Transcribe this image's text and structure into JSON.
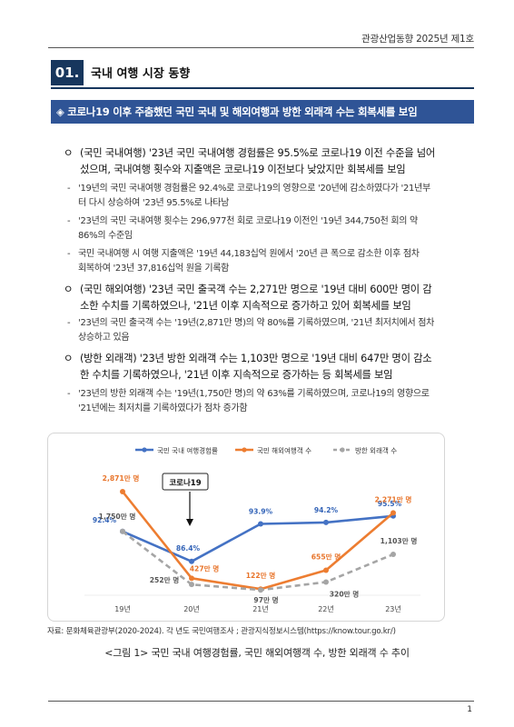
{
  "header": {
    "publication": "관광산업동향 2025년 제1호"
  },
  "section": {
    "number": "01.",
    "title": "국내 여행 시장 동향"
  },
  "banner": {
    "text": "◈ 코로나19 이후 주춤했던 국민 국내 및 해외여행과 방한 외래객 수는 회복세를 보임"
  },
  "bullets": [
    {
      "marker": "ㅇ",
      "lines": [
        "(국민 국내여행) '23년 국민 국내여행 경험률은 95.5%로 코로나19 이전 수준을 넘어",
        "섰으며, 국내여행 횟수와 지출액은 코로나19 이전보다 낮았지만 회복세를 보임"
      ],
      "subs": [
        {
          "marker": "-",
          "lines": [
            "'19년의 국민 국내여행 경험률은 92.4%로 코로나19의 영향으로 '20년에 감소하였다가 '21년부",
            "터 다시 상승하여 '23년 95.5%로 나타남"
          ]
        },
        {
          "marker": "-",
          "lines": [
            "'23년의 국민 국내여행 횟수는 296,977천 회로 코로나19 이전인 '19년 344,750천 회의 약",
            "86%의 수준임"
          ]
        },
        {
          "marker": "-",
          "lines": [
            "국민 국내여행 시 여행 지출액은 '19년 44,183십억 원에서 '20년 큰 폭으로 감소한 이후 점차",
            "회복하여 '23년 37,816십억 원을 기록함"
          ]
        }
      ]
    },
    {
      "marker": "ㅇ",
      "lines": [
        "(국민 해외여행) '23년 국민 출국객 수는 2,271만 명으로 '19년 대비 600만 명이 감",
        "소한 수치를 기록하였으나, '21년 이후 지속적으로 증가하고 있어 회복세를 보임"
      ],
      "subs": [
        {
          "marker": "-",
          "lines": [
            "'23년의 국민 출국객 수는 '19년(2,871만 명)의 약 80%를 기록하였으며, '21년 최저치에서 점차",
            "상승하고 있음"
          ]
        }
      ]
    },
    {
      "marker": "ㅇ",
      "lines": [
        "(방한 외래객) '23년 방한 외래객 수는 1,103만 명으로 '19년 대비 647만 명이 감소",
        "한 수치를 기록하였으나, '21년 이후 지속적으로 증가하는 등 회복세를 보임"
      ],
      "subs": [
        {
          "marker": "-",
          "lines": [
            "'23년의 방한 외래객 수는 '19년(1,750만 명)의 약 63%를 기록하였으며, 코로나19의 영향으로",
            "'21년에는 최저치를 기록하였다가 점차 증가함"
          ]
        }
      ]
    }
  ],
  "chart_data": {
    "type": "line",
    "categories": [
      "19년",
      "20년",
      "21년",
      "22년",
      "23년"
    ],
    "series": [
      {
        "name": "국민 국내 여행경험률",
        "color": "#4472c4",
        "values": [
          92.4,
          86.4,
          93.9,
          94.2,
          95.5
        ],
        "labels": [
          "92.4%",
          "86.4%",
          "93.9%",
          "94.2%",
          "95.5%"
        ]
      },
      {
        "name": "국민 해외여행객 수",
        "color": "#ed7d31",
        "values": [
          2871,
          427,
          122,
          655,
          2271
        ],
        "labels": [
          "2,871만 명",
          "427만 명",
          "122만 명",
          "655만 명",
          "2,271만 명"
        ]
      },
      {
        "name": "방한 외래객 수",
        "color": "#a5a5a5",
        "values": [
          1750,
          252,
          97,
          320,
          1103
        ],
        "labels": [
          "1,750만 명",
          "252만 명",
          "97만 명",
          "320만 명",
          "1,103만 명"
        ]
      }
    ],
    "annotation": "코로나19",
    "legend_position": "top"
  },
  "source": "자료: 문화체육관광부(2020-2024). 각 년도 국민여행조사 ; 관광지식정보시스템(https://know.tour.go.kr/)",
  "caption": "<그림 1> 국민 국내 여행경험률, 국민 해외여행객 수, 방한 외래객 수 추이",
  "page_number": "1"
}
